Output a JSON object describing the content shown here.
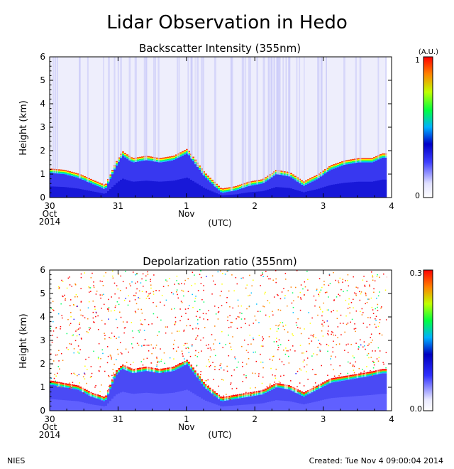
{
  "title": "Lidar Observation in Hedo",
  "footer": {
    "left": "NIES",
    "right": "Created: Tue Nov  4 09:00:04 2014"
  },
  "colors": {
    "colormap": [
      "#ffffff",
      "#e8e8ff",
      "#2020ff",
      "#0000d0",
      "#00c8ff",
      "#00ff60",
      "#c8ff00",
      "#ff8000",
      "#ff0000"
    ]
  },
  "chart_data": [
    {
      "type": "heatmap",
      "title": "Backscatter Intensity (355nm)",
      "ylabel": "Height (km)",
      "xlabel": "(UTC)",
      "x_ticks": [
        {
          "value": 0,
          "line1": "30",
          "line2": "Oct",
          "line3": "2014"
        },
        {
          "value": 1,
          "line1": "31",
          "line2": "",
          "line3": ""
        },
        {
          "value": 2,
          "line1": "1",
          "line2": "Nov",
          "line3": ""
        },
        {
          "value": 3,
          "line1": "2",
          "line2": "",
          "line3": ""
        },
        {
          "value": 4,
          "line1": "3",
          "line2": "",
          "line3": ""
        },
        {
          "value": 5,
          "line1": "4",
          "line2": "",
          "line3": ""
        }
      ],
      "xlim": [
        0,
        5
      ],
      "y_ticks": [
        "0",
        "1",
        "2",
        "3",
        "4",
        "5",
        "6"
      ],
      "ylim": [
        0,
        6
      ],
      "colorbar": {
        "unit": "(A.U.)",
        "min_label": "0",
        "max_label": "1",
        "range": [
          0,
          1
        ]
      },
      "cloud_base_km": [
        {
          "day": 0.02,
          "h": 1.05
        },
        {
          "day": 0.2,
          "h": 1.0
        },
        {
          "day": 0.4,
          "h": 0.85
        },
        {
          "day": 0.6,
          "h": 0.6
        },
        {
          "day": 0.8,
          "h": 0.35
        },
        {
          "day": 0.95,
          "h": 1.3
        },
        {
          "day": 1.05,
          "h": 1.8
        },
        {
          "day": 1.2,
          "h": 1.5
        },
        {
          "day": 1.4,
          "h": 1.6
        },
        {
          "day": 1.6,
          "h": 1.5
        },
        {
          "day": 1.8,
          "h": 1.6
        },
        {
          "day": 2.0,
          "h": 1.9
        },
        {
          "day": 2.25,
          "h": 0.9
        },
        {
          "day": 2.5,
          "h": 0.2
        },
        {
          "day": 2.7,
          "h": 0.3
        },
        {
          "day": 2.9,
          "h": 0.5
        },
        {
          "day": 3.1,
          "h": 0.6
        },
        {
          "day": 3.3,
          "h": 1.0
        },
        {
          "day": 3.5,
          "h": 0.9
        },
        {
          "day": 3.7,
          "h": 0.5
        },
        {
          "day": 3.9,
          "h": 0.8
        },
        {
          "day": 4.1,
          "h": 1.2
        },
        {
          "day": 4.3,
          "h": 1.4
        },
        {
          "day": 4.5,
          "h": 1.5
        },
        {
          "day": 4.7,
          "h": 1.5
        },
        {
          "day": 4.85,
          "h": 1.7
        }
      ]
    },
    {
      "type": "heatmap",
      "title": "Depolarization ratio (355nm)",
      "ylabel": "Height (km)",
      "xlabel": "(UTC)",
      "x_ticks": [
        {
          "value": 0,
          "line1": "30",
          "line2": "Oct",
          "line3": "2014"
        },
        {
          "value": 1,
          "line1": "31",
          "line2": "",
          "line3": ""
        },
        {
          "value": 2,
          "line1": "1",
          "line2": "Nov",
          "line3": ""
        },
        {
          "value": 3,
          "line1": "2",
          "line2": "",
          "line3": ""
        },
        {
          "value": 4,
          "line1": "3",
          "line2": "",
          "line3": ""
        },
        {
          "value": 5,
          "line1": "4",
          "line2": "",
          "line3": ""
        }
      ],
      "xlim": [
        0,
        5
      ],
      "y_ticks": [
        "0",
        "1",
        "2",
        "3",
        "4",
        "5",
        "6"
      ],
      "ylim": [
        0,
        6
      ],
      "colorbar": {
        "unit": "",
        "min_label": "0.0",
        "max_label": "0.3",
        "range": [
          0,
          0.3
        ]
      },
      "cloud_base_km": [
        {
          "day": 0.02,
          "h": 1.1
        },
        {
          "day": 0.2,
          "h": 1.0
        },
        {
          "day": 0.4,
          "h": 0.9
        },
        {
          "day": 0.6,
          "h": 0.6
        },
        {
          "day": 0.8,
          "h": 0.4
        },
        {
          "day": 0.95,
          "h": 1.5
        },
        {
          "day": 1.05,
          "h": 1.8
        },
        {
          "day": 1.2,
          "h": 1.6
        },
        {
          "day": 1.4,
          "h": 1.7
        },
        {
          "day": 1.6,
          "h": 1.6
        },
        {
          "day": 1.8,
          "h": 1.7
        },
        {
          "day": 2.0,
          "h": 2.0
        },
        {
          "day": 2.25,
          "h": 1.0
        },
        {
          "day": 2.5,
          "h": 0.4
        },
        {
          "day": 2.7,
          "h": 0.5
        },
        {
          "day": 2.9,
          "h": 0.6
        },
        {
          "day": 3.1,
          "h": 0.7
        },
        {
          "day": 3.3,
          "h": 1.0
        },
        {
          "day": 3.5,
          "h": 0.9
        },
        {
          "day": 3.7,
          "h": 0.6
        },
        {
          "day": 3.9,
          "h": 0.9
        },
        {
          "day": 4.1,
          "h": 1.2
        },
        {
          "day": 4.3,
          "h": 1.3
        },
        {
          "day": 4.5,
          "h": 1.4
        },
        {
          "day": 4.7,
          "h": 1.5
        },
        {
          "day": 4.85,
          "h": 1.6
        }
      ]
    }
  ]
}
